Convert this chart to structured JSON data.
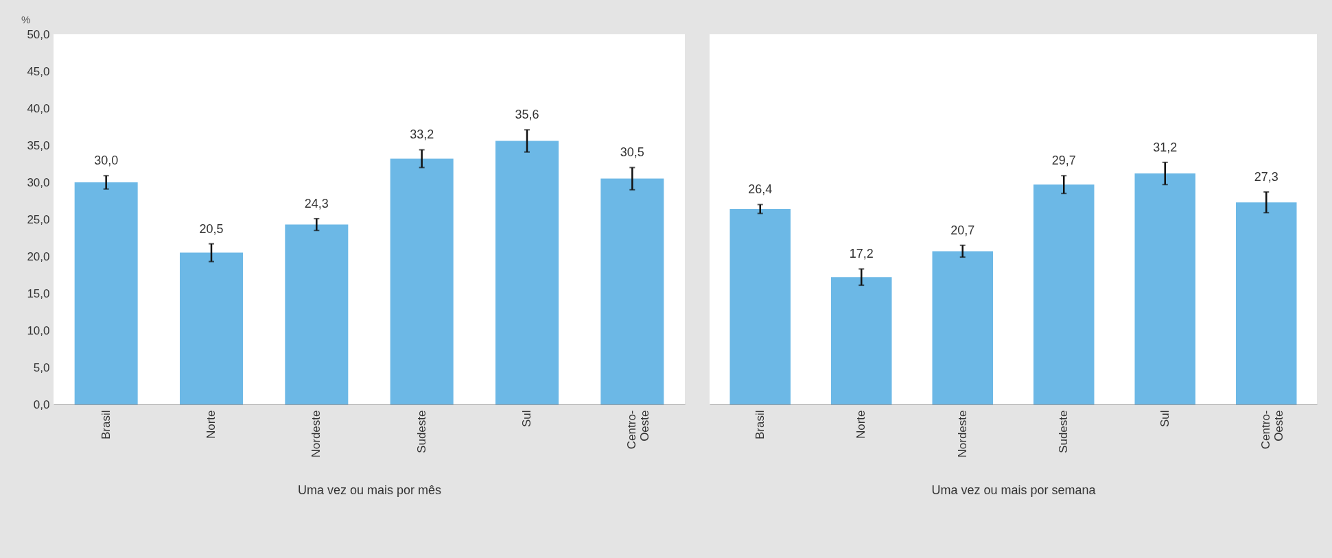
{
  "chart_data": [
    {
      "type": "bar",
      "ylabel": "%",
      "xlabel": "Uma vez ou mais por mês",
      "categories": [
        "Brasil",
        "Norte",
        "Nordeste",
        "Sudeste",
        "Sul",
        "Centro-Oeste"
      ],
      "values": [
        30.0,
        20.5,
        24.3,
        33.2,
        35.6,
        30.5
      ],
      "value_labels": [
        "30,0",
        "20,5",
        "24,3",
        "33,2",
        "35,6",
        "30,5"
      ],
      "errors": [
        0.9,
        1.2,
        0.8,
        1.2,
        1.5,
        1.5
      ],
      "color": "#6cb8e6",
      "ylim": [
        0,
        50
      ],
      "yticks": [
        {
          "value": 0,
          "label": "0,0"
        },
        {
          "value": 5,
          "label": "5,0"
        },
        {
          "value": 10,
          "label": "10,0"
        },
        {
          "value": 15,
          "label": "15,0"
        },
        {
          "value": 20,
          "label": "20,0"
        },
        {
          "value": 25,
          "label": "25,0"
        },
        {
          "value": 30,
          "label": "30,0"
        },
        {
          "value": 35,
          "label": "35,0"
        },
        {
          "value": 40,
          "label": "40,0"
        },
        {
          "value": 45,
          "label": "45,0"
        },
        {
          "value": 50,
          "label": "50,0"
        }
      ]
    },
    {
      "type": "bar",
      "xlabel": "Uma vez ou mais por semana",
      "categories": [
        "Brasil",
        "Norte",
        "Nordeste",
        "Sudeste",
        "Sul",
        "Centro-Oeste"
      ],
      "values": [
        26.4,
        17.2,
        20.7,
        29.7,
        31.2,
        27.3
      ],
      "value_labels": [
        "26,4",
        "17,2",
        "20,7",
        "29,7",
        "31,2",
        "27,3"
      ],
      "errors": [
        0.6,
        1.1,
        0.8,
        1.2,
        1.5,
        1.4
      ],
      "color": "#6cb8e6",
      "ylim": [
        0,
        50
      ],
      "tick_labels": "x"
    }
  ]
}
